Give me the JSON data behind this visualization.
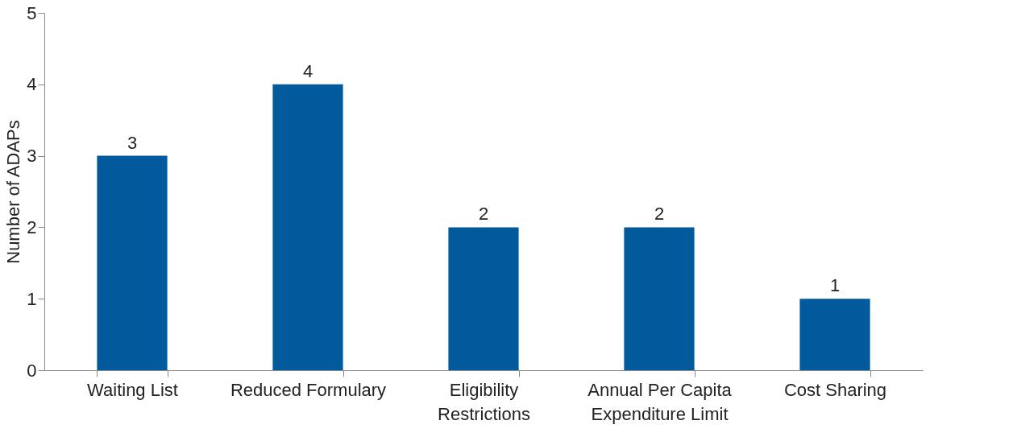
{
  "chart_data": {
    "type": "bar",
    "ylabel": "Number of ADAPs",
    "categories": [
      "Waiting List",
      "Reduced Formulary",
      "Eligibility Restrictions",
      "Annual Per Capita Expenditure Limit",
      "Cost Sharing"
    ],
    "values": [
      3,
      4,
      2,
      2,
      1
    ],
    "color": "#005a9c",
    "ylim": [
      0,
      5
    ],
    "yticks": [
      0,
      1,
      2,
      3,
      4,
      5
    ],
    "grid": false,
    "data_labels": true
  }
}
